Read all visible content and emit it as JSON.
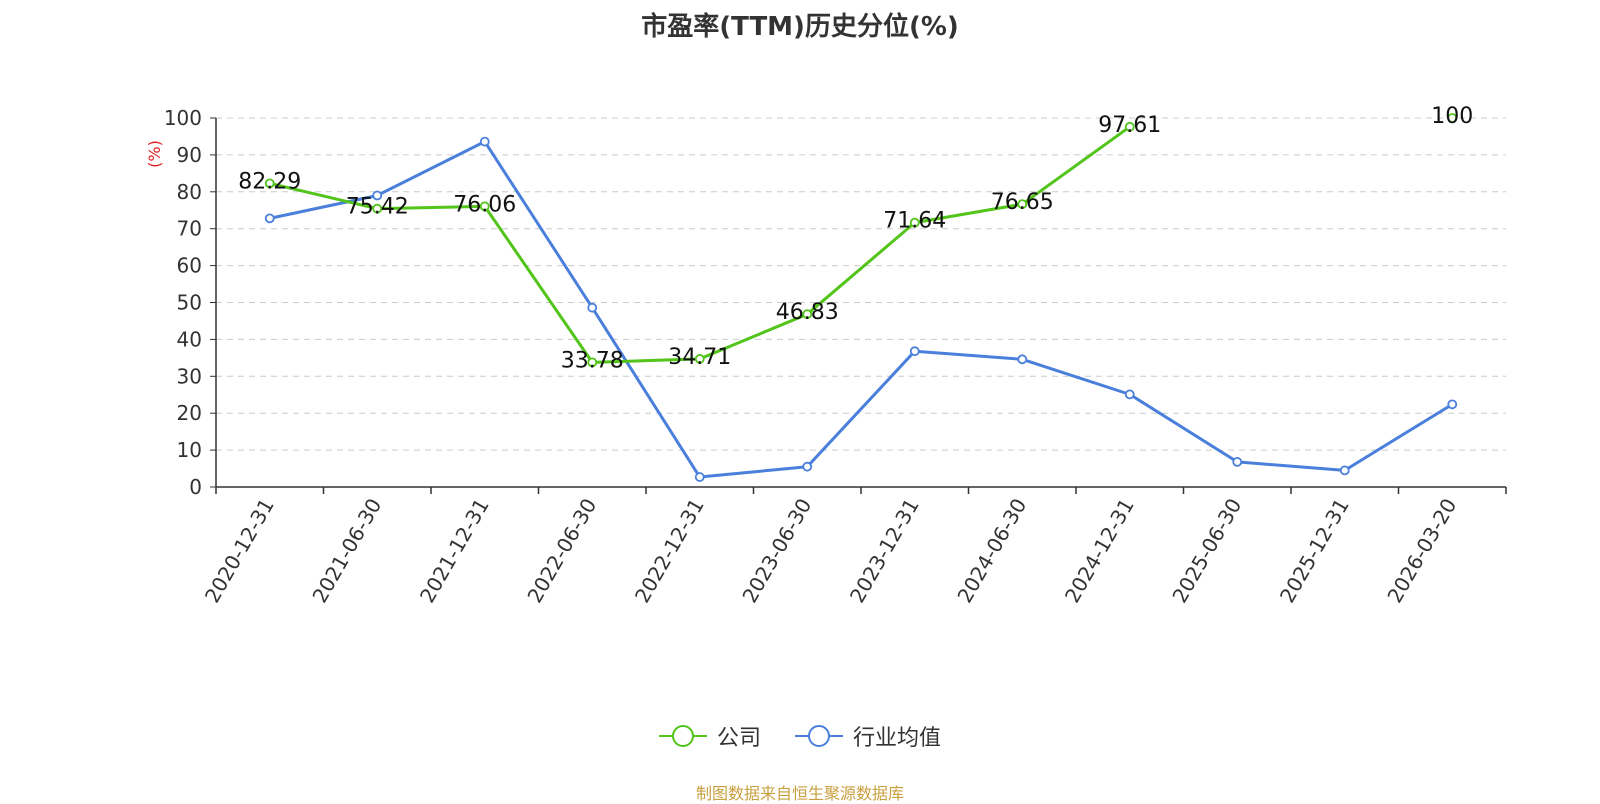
{
  "chart_data": {
    "type": "line",
    "title": "市盈率(TTM)历史分位(%)",
    "ylabel": "(%)",
    "ylim": [
      0,
      100
    ],
    "yticks": [
      0,
      10,
      20,
      30,
      40,
      50,
      60,
      70,
      80,
      90,
      100
    ],
    "categories": [
      "2020-12-31",
      "2021-06-30",
      "2021-12-31",
      "2022-06-30",
      "2022-12-31",
      "2023-06-30",
      "2023-12-31",
      "2024-06-30",
      "2024-12-31",
      "2025-06-30",
      "2025-12-31",
      "2026-03-20"
    ],
    "grid": true,
    "legend_position": "bottom",
    "series": [
      {
        "name": "公司",
        "color": "#52c41a",
        "values": [
          82.29,
          75.42,
          76.06,
          33.78,
          34.71,
          46.83,
          71.64,
          76.65,
          97.61,
          null,
          null,
          100
        ],
        "labels": [
          "82.29",
          "75.42",
          "76.06",
          "33.78",
          "34.71",
          "46.83",
          "71.64",
          "76.65",
          "97.61",
          null,
          null,
          "100"
        ]
      },
      {
        "name": "行业均值",
        "color": "#4a7fdc",
        "values": [
          72.8,
          79.0,
          93.6,
          48.6,
          2.7,
          5.5,
          36.8,
          34.6,
          25.1,
          6.8,
          4.5,
          22.4
        ],
        "labels": null
      }
    ]
  },
  "source": "制图数据来自恒生聚源数据库"
}
